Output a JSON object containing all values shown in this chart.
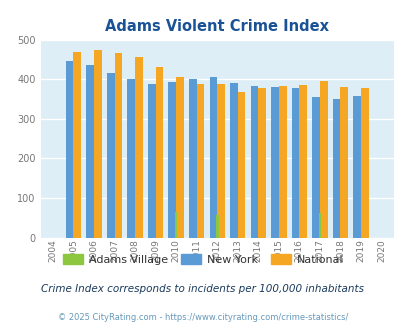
{
  "title": "Adams Violent Crime Index",
  "years": [
    2004,
    2005,
    2006,
    2007,
    2008,
    2009,
    2010,
    2011,
    2012,
    2013,
    2014,
    2015,
    2016,
    2017,
    2018,
    2019,
    2020
  ],
  "adams_village": [
    0,
    0,
    0,
    0,
    0,
    0,
    65,
    0,
    57,
    0,
    0,
    0,
    0,
    62,
    0,
    0,
    0
  ],
  "new_york": [
    0,
    445,
    435,
    415,
    400,
    388,
    393,
    400,
    406,
    391,
    384,
    381,
    378,
    356,
    350,
    357,
    0
  ],
  "national": [
    0,
    469,
    474,
    467,
    455,
    432,
    405,
    387,
    387,
    367,
    377,
    383,
    386,
    395,
    381,
    379,
    0
  ],
  "adams_color": "#8dc63f",
  "ny_color": "#5b9bd5",
  "national_color": "#f5a623",
  "bg_color": "#deeef6",
  "title_color": "#1a5296",
  "subtitle": "Crime Index corresponds to incidents per 100,000 inhabitants",
  "footer": "© 2025 CityRating.com - https://www.cityrating.com/crime-statistics/",
  "ylim": [
    0,
    500
  ],
  "yticks": [
    0,
    100,
    200,
    300,
    400,
    500
  ]
}
